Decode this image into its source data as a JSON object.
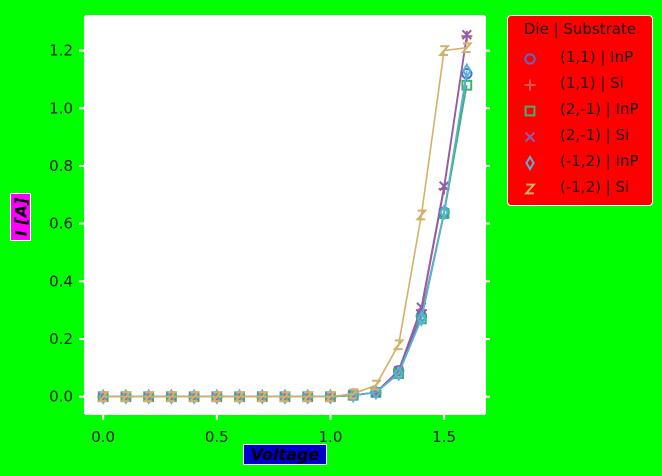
{
  "chart_data": {
    "type": "line",
    "xlabel": "Voltage",
    "ylabel": "I [A]",
    "xlim": [
      -0.08,
      1.68
    ],
    "ylim": [
      -0.06,
      1.32
    ],
    "xticks": [
      0.0,
      0.5,
      1.0,
      1.5
    ],
    "xtick_labels": [
      "0.0",
      "0.5",
      "1.0",
      "1.5"
    ],
    "yticks": [
      0.0,
      0.2,
      0.4,
      0.6,
      0.8,
      1.0,
      1.2
    ],
    "ytick_labels": [
      "0.0",
      "0.2",
      "0.4",
      "0.6",
      "0.8",
      "1.0",
      "1.2"
    ],
    "grid": false,
    "legend_position": "outside-top-right",
    "legend_title": "Die | Substrate",
    "x": [
      0.0,
      0.1,
      0.2,
      0.3,
      0.4,
      0.5,
      0.6,
      0.7,
      0.8,
      0.9,
      1.0,
      1.1,
      1.2,
      1.3,
      1.4,
      1.5,
      1.6
    ],
    "series": [
      {
        "name": "(1,1) | InP",
        "marker": "circle",
        "color": "#4b6fd1",
        "values": [
          0,
          0,
          0,
          0,
          0,
          0,
          0,
          0,
          0,
          0,
          0,
          0.005,
          0.015,
          0.09,
          0.28,
          0.64,
          1.12
        ]
      },
      {
        "name": "(1,1) | Si",
        "marker": "plus",
        "color": "#d9534f",
        "values": [
          0,
          0,
          0,
          0,
          0,
          0,
          0,
          0,
          0,
          0,
          0,
          0.005,
          0.015,
          0.09,
          0.3,
          0.72,
          1.25
        ]
      },
      {
        "name": "(2,-1) | InP",
        "marker": "square",
        "color": "#3cb371",
        "values": [
          0,
          0,
          0,
          0,
          0,
          0,
          0,
          0,
          0,
          0,
          0,
          0.005,
          0.015,
          0.08,
          0.27,
          0.635,
          1.08
        ]
      },
      {
        "name": "(2,-1) | Si",
        "marker": "x",
        "color": "#8a5fb5",
        "values": [
          0,
          0,
          0,
          0,
          0,
          0,
          0,
          0,
          0,
          0,
          0,
          0.005,
          0.015,
          0.09,
          0.31,
          0.73,
          1.255
        ]
      },
      {
        "name": "(-1,2) | InP",
        "marker": "diamond",
        "color": "#56b4d3",
        "values": [
          0,
          0,
          0,
          0,
          0,
          0,
          0,
          0,
          0,
          0,
          0,
          0.005,
          0.015,
          0.08,
          0.27,
          0.64,
          1.13
        ]
      },
      {
        "name": "(-1,2) | Si",
        "marker": "z",
        "color": "#d4b06a",
        "values": [
          0,
          0,
          0,
          0,
          0,
          0,
          0,
          0,
          0,
          0,
          0,
          0.01,
          0.04,
          0.18,
          0.63,
          1.2,
          1.21
        ]
      }
    ]
  }
}
